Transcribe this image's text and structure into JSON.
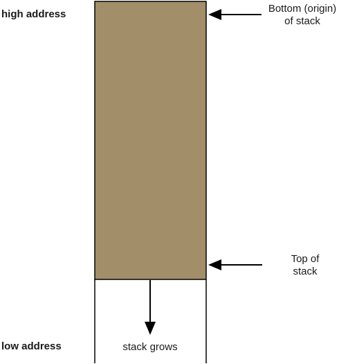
{
  "labels": {
    "high_address": "high address",
    "low_address": "low address",
    "bottom_of_stack_line1": "Bottom (origin)",
    "bottom_of_stack_line2": "of stack",
    "top_of_stack_line1": "Top of",
    "top_of_stack_line2": "stack",
    "stack_grows": "stack grows"
  },
  "colors": {
    "stack_fill": "#a38e6a",
    "stroke": "#000000",
    "text": "#1a1a1a"
  },
  "icons": {
    "bottom_pointer": "arrow-left-icon",
    "top_pointer": "arrow-left-icon",
    "growth_direction": "arrow-down-icon"
  }
}
